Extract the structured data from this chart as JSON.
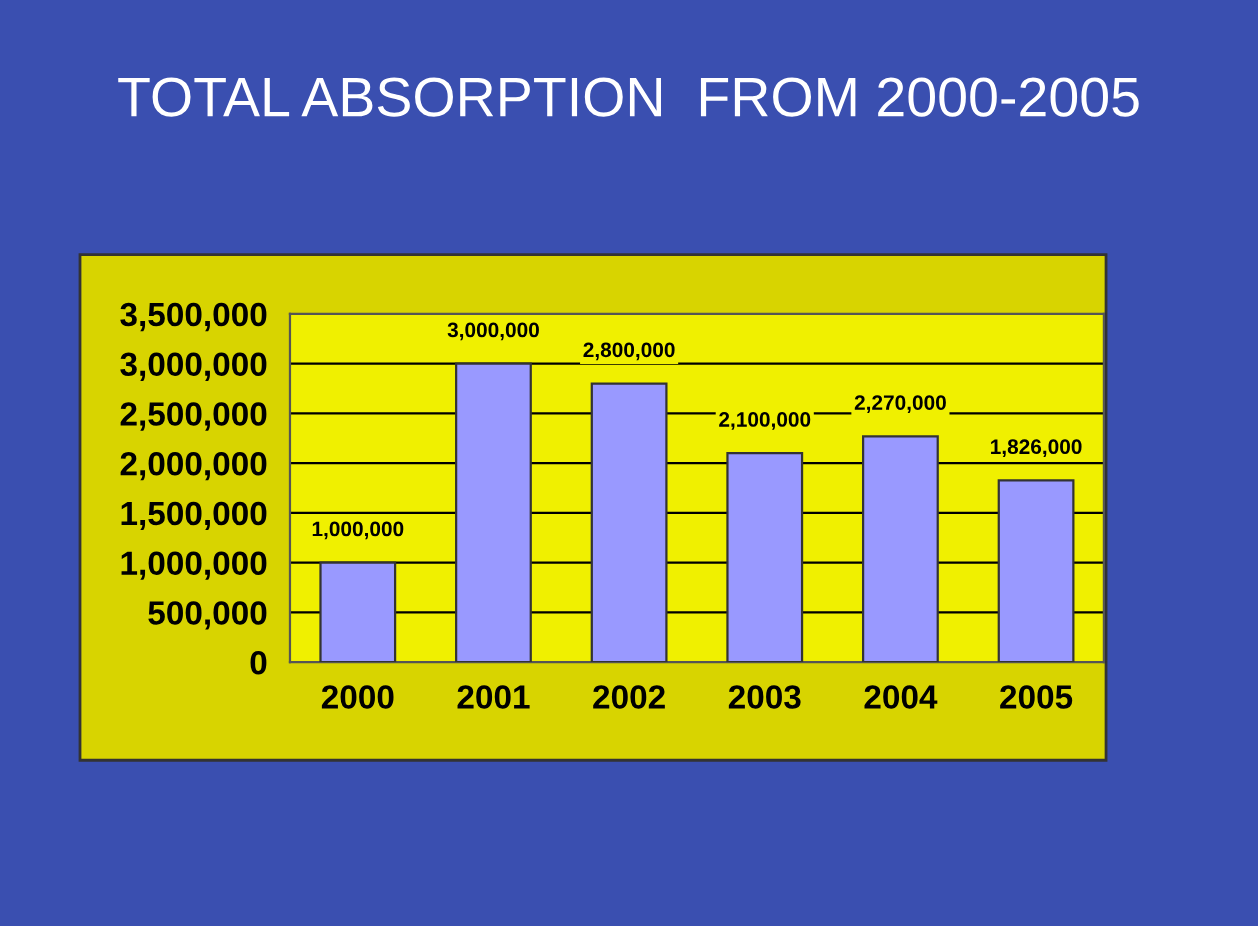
{
  "chart_data": {
    "type": "bar",
    "title": "TOTAL ABSORPTION  FROM 2000-2005",
    "categories": [
      "2000",
      "2001",
      "2002",
      "2003",
      "2004",
      "2005"
    ],
    "values": [
      1000000,
      3000000,
      2800000,
      2100000,
      2270000,
      1826000
    ],
    "color": "#9999ff",
    "ylim": [
      0,
      3500000
    ],
    "yticks": [
      {
        "value": 0,
        "label": "0"
      },
      {
        "value": 500000,
        "label": "500,000"
      },
      {
        "value": 1000000,
        "label": "1,000,000"
      },
      {
        "value": 1500000,
        "label": "1,500,000"
      },
      {
        "value": 2000000,
        "label": "2,000,000"
      },
      {
        "value": 2500000,
        "label": "2,500,000"
      },
      {
        "value": 3000000,
        "label": "3,000,000"
      },
      {
        "value": 3500000,
        "label": "3,500,000"
      }
    ],
    "value_labels": [
      "1,000,000",
      "3,000,000",
      "2,800,000",
      "2,100,000",
      "2,270,000",
      "1,826,000"
    ],
    "grid": "y",
    "legend": false
  }
}
